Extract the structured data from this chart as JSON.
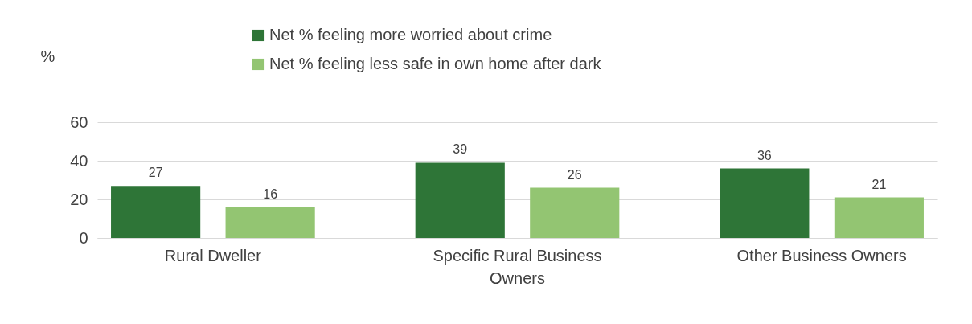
{
  "chart_data": {
    "type": "bar",
    "ylabel": "%",
    "categories": [
      "Rural Dweller",
      "Specific Rural Business Owners",
      "Other Business Owners"
    ],
    "series": [
      {
        "name": "Net % feeling more worried about crime",
        "color": "#2e7537",
        "values": [
          27,
          39,
          36
        ]
      },
      {
        "name": "Net % feeling less safe in own home after dark",
        "color": "#93c572",
        "values": [
          16,
          26,
          21
        ]
      }
    ],
    "ylim": [
      0,
      60
    ],
    "yticks": [
      0,
      20,
      40,
      60
    ],
    "grid": "y",
    "legend": "top",
    "data_labels": true
  }
}
